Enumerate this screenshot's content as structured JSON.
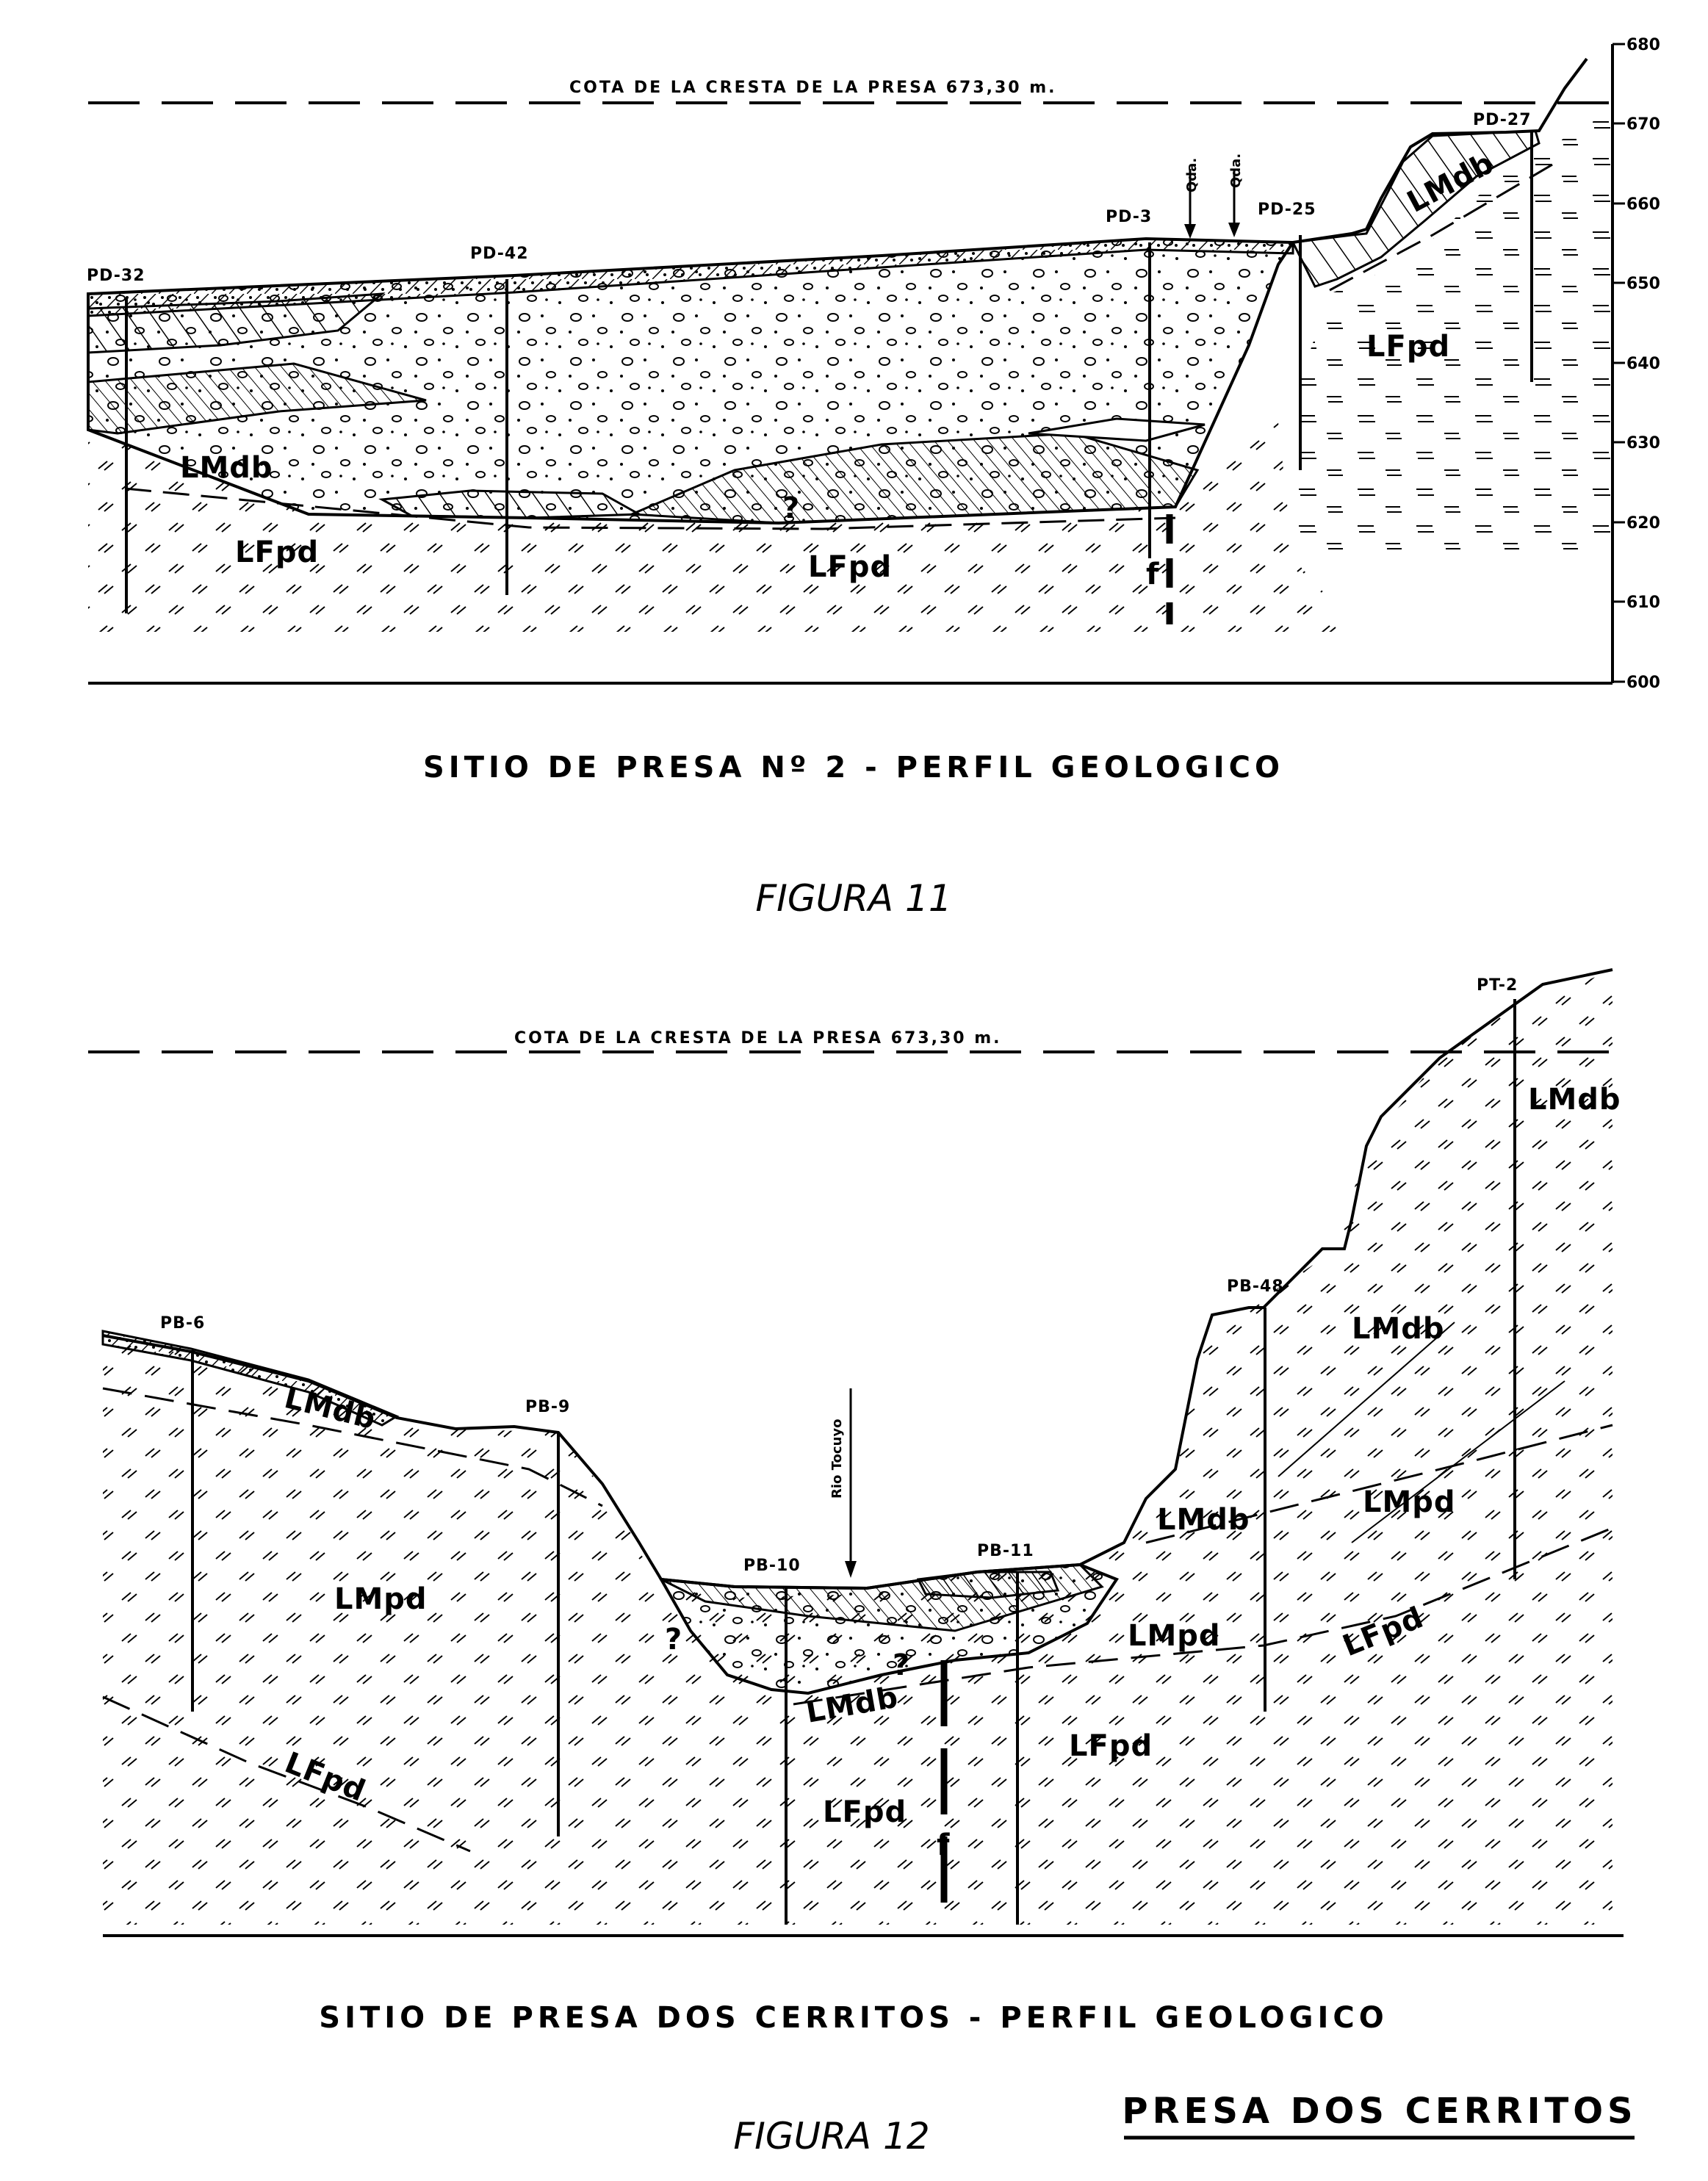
{
  "figure11": {
    "crest_label": "COTA DE LA CRESTA DE LA PRESA 673,30 m.",
    "boreholes": [
      "PD-32",
      "PD-42",
      "PD-3",
      "PD-25",
      "PD-27"
    ],
    "units": [
      "LMdb",
      "LFpd",
      "LFpd",
      "LMdb",
      "LFpd"
    ],
    "creek_labels": [
      "Qda.",
      "Qda."
    ],
    "fault_label": "f",
    "question_mark": "?",
    "elevation_ticks": [
      "680",
      "670",
      "660",
      "650",
      "640",
      "630",
      "620",
      "610",
      "600"
    ],
    "title": "SITIO DE PRESA Nº 2 - PERFIL GEOLOGICO",
    "caption": "FIGURA 11"
  },
  "figure12": {
    "crest_label": "COTA DE LA CRESTA DE LA PRESA 673,30 m.",
    "boreholes": [
      "PB-6",
      "PB-9",
      "PB-10",
      "PB-11",
      "PB-48",
      "PT-2"
    ],
    "river_label": "Rio Tocuyo",
    "units": [
      "LMdb",
      "LMpd",
      "LFpd",
      "LMdb",
      "LFpd",
      "LFpd",
      "LMpd",
      "LMdb",
      "LMdb",
      "LMpd",
      "LFpd",
      "LMdb"
    ],
    "fault_label": "f",
    "question_marks": [
      "?",
      "?"
    ],
    "title": "SITIO DE PRESA DOS CERRITOS - PERFIL GEOLOGICO",
    "caption": "FIGURA 12",
    "corner_title": "PRESA DOS CERRITOS"
  }
}
